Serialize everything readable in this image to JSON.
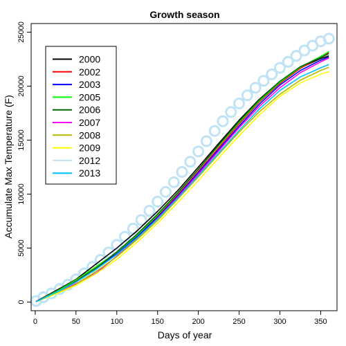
{
  "chart_data": {
    "type": "line",
    "title": "Growth season",
    "xlabel": "Days of year",
    "ylabel": "Accumulate Max Temperature (F)",
    "xlim": [
      -5,
      370
    ],
    "ylim": [
      -800,
      25800
    ],
    "xticks": [
      0,
      50,
      100,
      150,
      200,
      250,
      300,
      350
    ],
    "yticks": [
      0,
      5000,
      10000,
      15000,
      20000,
      25000
    ],
    "grid": false,
    "legend_position": "top-left",
    "series": [
      {
        "name": "2000",
        "color": "#000000",
        "style": "line",
        "x": [
          1,
          30,
          50,
          75,
          100,
          125,
          150,
          175,
          200,
          225,
          250,
          275,
          300,
          325,
          350,
          360
        ],
        "y": [
          50,
          1250,
          2100,
          3550,
          5000,
          6600,
          8400,
          10350,
          12500,
          14700,
          16850,
          18800,
          20450,
          21700,
          22550,
          22800
        ]
      },
      {
        "name": "2002",
        "color": "#ff0000",
        "style": "line",
        "x": [
          1,
          30,
          50,
          75,
          100,
          125,
          150,
          175,
          200,
          225,
          250,
          275,
          300,
          325,
          350,
          360
        ],
        "y": [
          40,
          1150,
          1950,
          3200,
          4550,
          6100,
          7950,
          9950,
          12100,
          14300,
          16500,
          18550,
          20250,
          21650,
          22700,
          23100
        ]
      },
      {
        "name": "2003",
        "color": "#0000ff",
        "style": "line",
        "x": [
          1,
          30,
          50,
          75,
          100,
          125,
          150,
          175,
          200,
          225,
          250,
          275,
          300,
          325,
          350,
          360
        ],
        "y": [
          30,
          1100,
          1900,
          3150,
          4500,
          6050,
          7850,
          9850,
          12000,
          14150,
          16300,
          18350,
          20100,
          21450,
          22400,
          22700
        ]
      },
      {
        "name": "2005",
        "color": "#00ff00",
        "style": "line",
        "x": [
          1,
          30,
          50,
          75,
          100,
          125,
          150,
          175,
          200,
          225,
          250,
          275,
          300,
          325,
          350,
          360
        ],
        "y": [
          20,
          1150,
          2050,
          3300,
          4600,
          6200,
          8050,
          10100,
          12300,
          14500,
          16650,
          18650,
          20350,
          21750,
          22750,
          23200
        ]
      },
      {
        "name": "2006",
        "color": "#006400",
        "style": "line",
        "x": [
          1,
          30,
          50,
          75,
          100,
          125,
          150,
          175,
          200,
          225,
          250,
          275,
          300,
          325,
          350,
          360
        ],
        "y": [
          20,
          1050,
          1900,
          3150,
          4650,
          6300,
          8150,
          10150,
          12300,
          14550,
          16750,
          18750,
          20450,
          21800,
          22650,
          23000
        ]
      },
      {
        "name": "2007",
        "color": "#ff00ff",
        "style": "line",
        "x": [
          1,
          30,
          50,
          75,
          100,
          125,
          150,
          175,
          200,
          225,
          250,
          275,
          300,
          325,
          350,
          360
        ],
        "y": [
          30,
          1000,
          1700,
          2700,
          4250,
          5900,
          7750,
          9750,
          11850,
          14000,
          16150,
          18150,
          19850,
          21250,
          22250,
          22600
        ]
      },
      {
        "name": "2008",
        "color": "#b8b800",
        "style": "line",
        "x": [
          1,
          30,
          50,
          75,
          100,
          125,
          150,
          175,
          200,
          225,
          250,
          275,
          300,
          325,
          350,
          360
        ],
        "y": [
          20,
          950,
          1650,
          2850,
          4200,
          5800,
          7550,
          9550,
          11600,
          13700,
          15750,
          17650,
          19250,
          20550,
          21450,
          21750
        ]
      },
      {
        "name": "2009",
        "color": "#ffff00",
        "style": "line",
        "x": [
          1,
          30,
          50,
          75,
          100,
          125,
          150,
          175,
          200,
          225,
          250,
          275,
          300,
          325,
          350,
          360
        ],
        "y": [
          20,
          900,
          1550,
          2650,
          3950,
          5550,
          7300,
          9250,
          11250,
          13350,
          15400,
          17350,
          19050,
          20300,
          21100,
          21350
        ]
      },
      {
        "name": "2012",
        "color": "#bfe3f5",
        "style": "markers",
        "x": [
          1,
          10,
          20,
          30,
          40,
          50,
          60,
          70,
          80,
          90,
          100,
          110,
          120,
          130,
          140,
          150,
          160,
          170,
          180,
          190,
          200,
          210,
          220,
          230,
          240,
          250,
          260,
          270,
          280,
          290,
          300,
          310,
          320,
          330,
          340,
          350,
          360
        ],
        "y": [
          100,
          450,
          800,
          1200,
          1600,
          2100,
          2650,
          3250,
          3900,
          4600,
          5300,
          6050,
          6800,
          7600,
          8450,
          9300,
          10200,
          11100,
          12050,
          13000,
          13950,
          14900,
          15850,
          16750,
          17600,
          18400,
          19150,
          19850,
          20500,
          21100,
          21700,
          22250,
          22800,
          23300,
          23750,
          24150,
          24400
        ]
      },
      {
        "name": "2013",
        "color": "#00bfff",
        "style": "line",
        "x": [
          1,
          30,
          50,
          75,
          100,
          125,
          150,
          175,
          200,
          225,
          250,
          275,
          300,
          325,
          350,
          360
        ],
        "y": [
          30,
          1050,
          1850,
          3050,
          4400,
          5950,
          7700,
          9650,
          11700,
          13800,
          15900,
          17900,
          19600,
          20850,
          21700,
          22000
        ]
      }
    ]
  }
}
